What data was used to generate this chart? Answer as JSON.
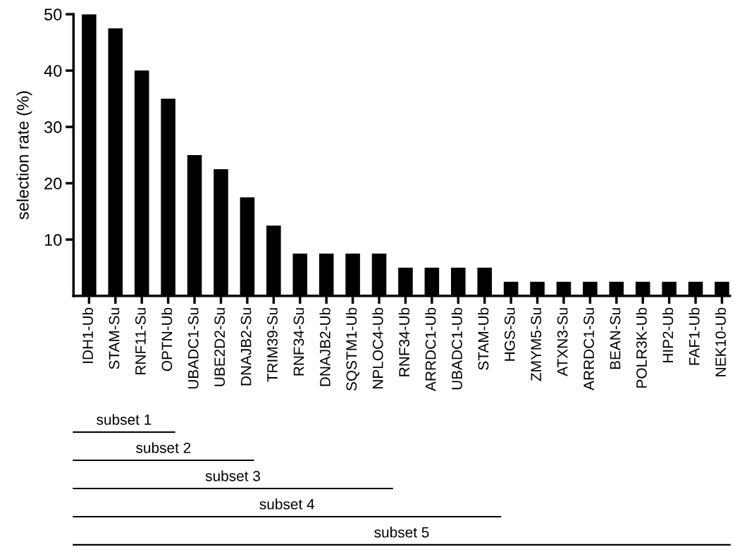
{
  "chart_data": {
    "type": "bar",
    "ylabel": "selection rate (%)",
    "categories": [
      "IDH1-Ub",
      "STAM-Su",
      "RNF11-Su",
      "OPTN-Ub",
      "UBADC1-Su",
      "UBE2D2-Su",
      "DNAJB2-Su",
      "TRIM39-Su",
      "RNF34-Su",
      "DNAJB2-Ub",
      "SQSTM1-Ub",
      "NPLOC4-Ub",
      "RNF34-Ub",
      "ARRDC1-Ub",
      "UBADC1-Ub",
      "STAM-Ub",
      "HGS-Su",
      "ZMYM5-Su",
      "ATXN3-Su",
      "ARRDC1-Su",
      "BEAN-Su",
      "POLR3K-Ub",
      "HIP2-Ub",
      "FAF1-Ub",
      "NEK10-Ub"
    ],
    "values": [
      50,
      47.5,
      40,
      35,
      25,
      22.5,
      17.5,
      12.5,
      7.5,
      7.5,
      7.5,
      7.5,
      5,
      5,
      5,
      5,
      2.5,
      2.5,
      2.5,
      2.5,
      2.5,
      2.5,
      2.5,
      2.5,
      2.5
    ],
    "color": "#000000",
    "ylim": [
      0,
      50
    ],
    "yticks": [
      10,
      20,
      30,
      40,
      50
    ],
    "grid": false,
    "legend": false,
    "annotations": [
      "subset 1",
      "subset 2",
      "subset 3",
      "subset 4",
      "subset 5"
    ]
  }
}
